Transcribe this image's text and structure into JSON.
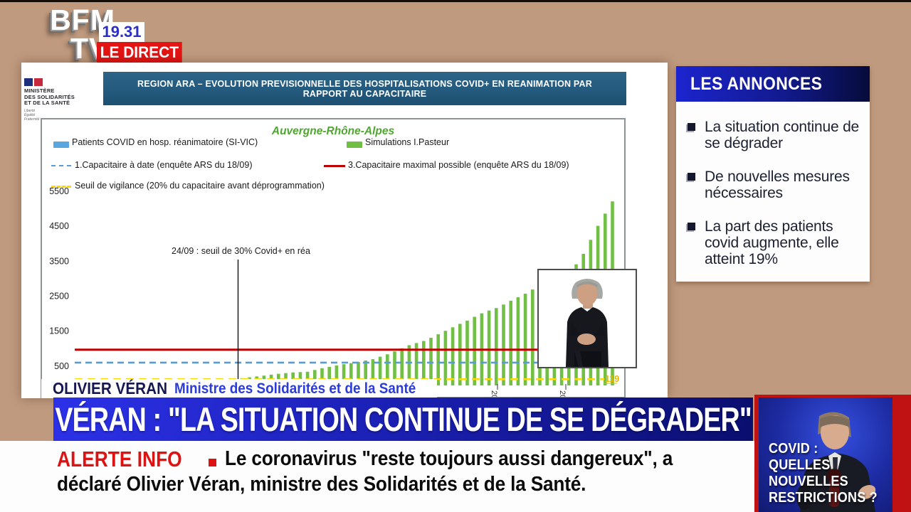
{
  "header": {
    "channel_line1": "BFM",
    "channel_line2": "TV.",
    "time": "19.31",
    "live_badge": "LE DIRECT"
  },
  "ministry": {
    "lines": [
      "MINISTÈRE",
      "DES SOLIDARITÉS",
      "ET DE LA SANTÉ"
    ],
    "motto": [
      "Liberté",
      "Égalité",
      "Fraternité"
    ]
  },
  "slide": {
    "banner": "REGION ARA – EVOLUTION PREVISIONNELLE DES HOSPITALISATIONS COVID+ EN REANIMATION PAR RAPPORT AU CAPACITAIRE"
  },
  "chart_data": {
    "type": "bar",
    "title": "Auvergne-Rhône-Alpes",
    "title_color": "#4ea72e",
    "legend": [
      {
        "label": "Patients COVID en hosp. réanimatoire (SI-VIC)",
        "color": "#5aa7e0",
        "style": "bar"
      },
      {
        "label": "Simulations I.Pasteur",
        "color": "#70bf44",
        "style": "bar"
      },
      {
        "label": "1.Capacitaire à date (enquête ARS du 18/09)",
        "color": "#5b9bd5",
        "style": "dashed"
      },
      {
        "label": "3.Capacitaire maximal possible (enquête ARS du 18/09)",
        "color": "#c00000",
        "style": "solid"
      },
      {
        "label": "Seuil de vigilance (20% du capacitaire avant déprogrammation)",
        "color": "#ffd900",
        "style": "dashed"
      }
    ],
    "ylim": [
      0,
      5500
    ],
    "yticks": [
      500,
      1500,
      2500,
      3500,
      4500,
      5500
    ],
    "grid": false,
    "annotation": {
      "text": "24/09 : seuil de 30% Covid+ en réa"
    },
    "ref_lines": [
      {
        "name": "capacitaire_maximal",
        "value": 960,
        "color": "#c00000",
        "dash": ""
      },
      {
        "name": "capacitaire_a_date",
        "value": 590,
        "color": "#5b9bd5",
        "dash": "9,6"
      },
      {
        "name": "seuil_vigilance",
        "value": 119,
        "color": "#ffd900",
        "dash": "11,7"
      }
    ],
    "seuil_label": "119",
    "xtick_labels": [
      "20",
      "20",
      "20"
    ],
    "series": [
      {
        "name": "Simulations I.Pasteur",
        "color": "#71bf45",
        "values": [
          40,
          60,
          80,
          100,
          120,
          145,
          170,
          195,
          220,
          245,
          270,
          290,
          310,
          320,
          330,
          380,
          430,
          470,
          510,
          545,
          575,
          610,
          650,
          690,
          760,
          830,
          910,
          1000,
          1090,
          1150,
          1210,
          1300,
          1400,
          1500,
          1600,
          1700,
          1790,
          1900,
          2000,
          2080,
          2150,
          2250,
          2360,
          2460,
          2560,
          2680,
          2800,
          2890,
          2970,
          3050,
          3130,
          3400,
          3700,
          4100,
          4500,
          4850,
          5200
        ]
      }
    ]
  },
  "sidebar": {
    "title": "LES ANNONCES",
    "items": [
      {
        "text": "La situation continue de se dégrader"
      },
      {
        "text": "De nouvelles mesures nécessaires"
      },
      {
        "text": "La part des patients covid augmente, elle atteint 19%"
      }
    ]
  },
  "caption": {
    "name": "OLIVIER VÉRAN",
    "role": "Ministre des Solidarités et de la Santé"
  },
  "banner": {
    "headline": "VÉRAN : \"LA SITUATION CONTINUE DE SE DÉGRADER\""
  },
  "alert": {
    "label": "ALERTE INFO",
    "line1": "Le coronavirus \"reste toujours aussi dangereux\", a",
    "line2": "déclaré Olivier Véran, ministre des Solidarités et de la Santé."
  },
  "teaser": {
    "lines": [
      "COVID :",
      "QUELLES",
      "NOUVELLES",
      "RESTRICTIONS ?"
    ]
  }
}
